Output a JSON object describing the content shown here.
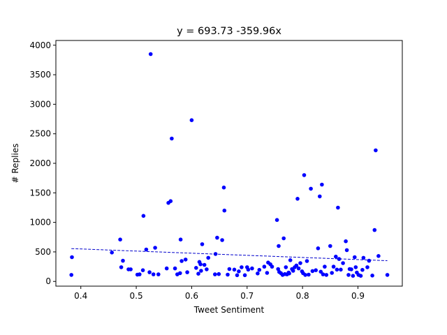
{
  "chart_data": {
    "type": "scatter",
    "title": "y = 693.73 -359.96x",
    "xlabel": "Tweet Sentiment",
    "ylabel": "# Replies",
    "xlim": [
      0.355,
      0.98
    ],
    "ylim": [
      -80,
      4080
    ],
    "xticks": [
      0.4,
      0.5,
      0.6,
      0.7,
      0.8,
      0.9
    ],
    "xtick_labels": [
      "0.4",
      "0.5",
      "0.6",
      "0.7",
      "0.8",
      "0.9"
    ],
    "yticks": [
      0,
      500,
      1000,
      1500,
      2000,
      2500,
      3000,
      3500,
      4000
    ],
    "ytick_labels": [
      "0",
      "500",
      "1000",
      "1500",
      "2000",
      "2500",
      "3000",
      "3500",
      "4000"
    ],
    "grid": false,
    "colors": {
      "points": "#0000ff",
      "fit_line": "#0000cc",
      "axes": "#000000"
    },
    "fit_line": {
      "intercept": 693.73,
      "slope": -359.96,
      "x_range": [
        0.383,
        0.953
      ],
      "style": "dashed"
    },
    "points": [
      [
        0.383,
        110
      ],
      [
        0.384,
        410
      ],
      [
        0.456,
        490
      ],
      [
        0.471,
        710
      ],
      [
        0.473,
        240
      ],
      [
        0.476,
        350
      ],
      [
        0.486,
        205
      ],
      [
        0.49,
        205
      ],
      [
        0.502,
        115
      ],
      [
        0.506,
        120
      ],
      [
        0.512,
        190
      ],
      [
        0.513,
        1110
      ],
      [
        0.518,
        540
      ],
      [
        0.524,
        155
      ],
      [
        0.526,
        3850
      ],
      [
        0.531,
        120
      ],
      [
        0.534,
        570
      ],
      [
        0.54,
        120
      ],
      [
        0.555,
        220
      ],
      [
        0.558,
        1330
      ],
      [
        0.562,
        1360
      ],
      [
        0.564,
        2420
      ],
      [
        0.57,
        220
      ],
      [
        0.574,
        120
      ],
      [
        0.579,
        140
      ],
      [
        0.58,
        710
      ],
      [
        0.582,
        345
      ],
      [
        0.589,
        370
      ],
      [
        0.592,
        155
      ],
      [
        0.6,
        2730
      ],
      [
        0.608,
        230
      ],
      [
        0.612,
        130
      ],
      [
        0.614,
        330
      ],
      [
        0.616,
        290
      ],
      [
        0.617,
        180
      ],
      [
        0.619,
        630
      ],
      [
        0.623,
        280
      ],
      [
        0.627,
        205
      ],
      [
        0.63,
        400
      ],
      [
        0.642,
        120
      ],
      [
        0.643,
        465
      ],
      [
        0.646,
        740
      ],
      [
        0.649,
        125
      ],
      [
        0.655,
        700
      ],
      [
        0.658,
        1590
      ],
      [
        0.659,
        1200
      ],
      [
        0.665,
        115
      ],
      [
        0.668,
        210
      ],
      [
        0.677,
        200
      ],
      [
        0.682,
        105
      ],
      [
        0.685,
        170
      ],
      [
        0.69,
        240
      ],
      [
        0.696,
        105
      ],
      [
        0.7,
        240
      ],
      [
        0.702,
        200
      ],
      [
        0.709,
        220
      ],
      [
        0.719,
        135
      ],
      [
        0.722,
        195
      ],
      [
        0.731,
        250
      ],
      [
        0.736,
        145
      ],
      [
        0.738,
        320
      ],
      [
        0.742,
        290
      ],
      [
        0.745,
        250
      ],
      [
        0.754,
        1040
      ],
      [
        0.756,
        210
      ],
      [
        0.757,
        600
      ],
      [
        0.758,
        160
      ],
      [
        0.761,
        140
      ],
      [
        0.764,
        110
      ],
      [
        0.766,
        730
      ],
      [
        0.768,
        125
      ],
      [
        0.77,
        240
      ],
      [
        0.772,
        120
      ],
      [
        0.775,
        150
      ],
      [
        0.776,
        135
      ],
      [
        0.778,
        360
      ],
      [
        0.781,
        210
      ],
      [
        0.783,
        180
      ],
      [
        0.786,
        240
      ],
      [
        0.789,
        270
      ],
      [
        0.791,
        1400
      ],
      [
        0.793,
        220
      ],
      [
        0.796,
        310
      ],
      [
        0.799,
        170
      ],
      [
        0.801,
        140
      ],
      [
        0.803,
        1800
      ],
      [
        0.805,
        110
      ],
      [
        0.808,
        345
      ],
      [
        0.811,
        115
      ],
      [
        0.815,
        1570
      ],
      [
        0.818,
        175
      ],
      [
        0.824,
        190
      ],
      [
        0.828,
        560
      ],
      [
        0.831,
        1440
      ],
      [
        0.833,
        165
      ],
      [
        0.835,
        1640
      ],
      [
        0.837,
        120
      ],
      [
        0.84,
        250
      ],
      [
        0.843,
        110
      ],
      [
        0.85,
        600
      ],
      [
        0.853,
        145
      ],
      [
        0.856,
        250
      ],
      [
        0.86,
        420
      ],
      [
        0.862,
        200
      ],
      [
        0.864,
        1250
      ],
      [
        0.866,
        380
      ],
      [
        0.869,
        200
      ],
      [
        0.873,
        310
      ],
      [
        0.878,
        680
      ],
      [
        0.88,
        530
      ],
      [
        0.883,
        110
      ],
      [
        0.885,
        210
      ],
      [
        0.888,
        205
      ],
      [
        0.891,
        95
      ],
      [
        0.894,
        410
      ],
      [
        0.896,
        240
      ],
      [
        0.898,
        150
      ],
      [
        0.901,
        110
      ],
      [
        0.905,
        95
      ],
      [
        0.908,
        195
      ],
      [
        0.91,
        400
      ],
      [
        0.917,
        240
      ],
      [
        0.92,
        350
      ],
      [
        0.926,
        100
      ],
      [
        0.93,
        870
      ],
      [
        0.932,
        2220
      ],
      [
        0.937,
        430
      ],
      [
        0.953,
        110
      ]
    ]
  }
}
